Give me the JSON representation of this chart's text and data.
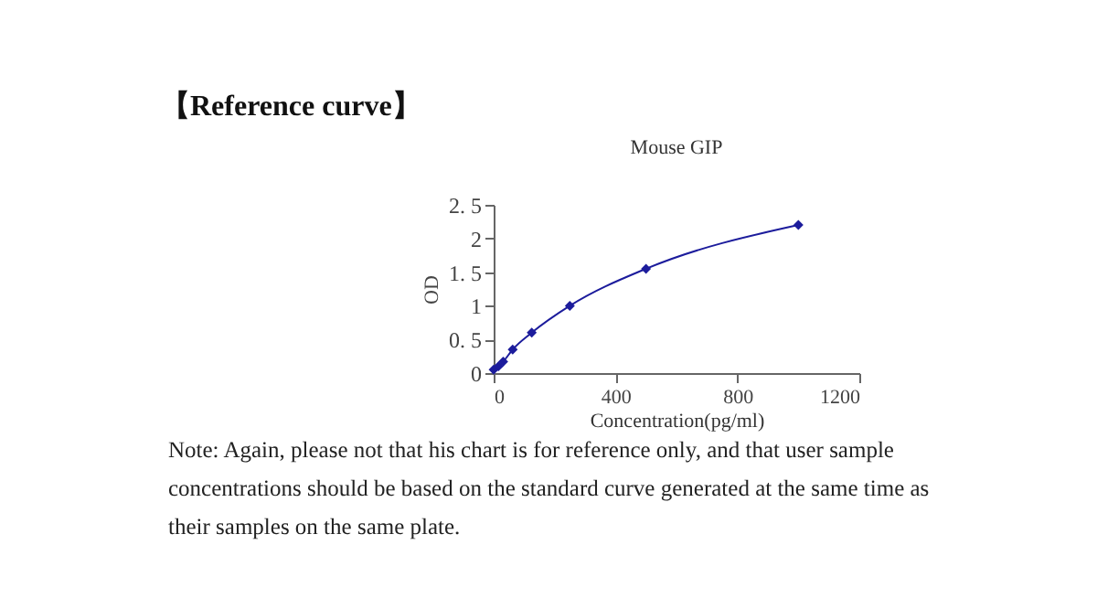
{
  "chart_data": {
    "type": "line",
    "title": "Mouse GIP",
    "xlabel": "Concentration(pg/ml)",
    "ylabel": "OD",
    "x": [
      0,
      15.6,
      31.25,
      62.5,
      125,
      250,
      500,
      1000
    ],
    "series": [
      {
        "color": "#1c1c9c",
        "values": [
          0.05,
          0.1,
          0.17,
          0.35,
          0.6,
          1.0,
          1.55,
          2.2
        ]
      }
    ],
    "xlim": [
      0,
      1200
    ],
    "xticks": [
      0,
      400,
      800,
      1200
    ],
    "ylim": [
      0,
      2.5
    ],
    "yticks": [
      0,
      {
        "value": 0.5,
        "label": "0. 5"
      },
      1,
      {
        "value": 1.5,
        "label": "1. 5"
      },
      2,
      {
        "value": 2.5,
        "label": "2. 5"
      }
    ],
    "grid": false,
    "legend": false,
    "marker": "diamond",
    "line_style": "solid",
    "annotations": [
      "【Reference curve】",
      "Note: Again, please not that his chart is for reference only, and that user sample concentrations should be based on the standard curve generated at the same time as their samples on the same plate."
    ]
  }
}
